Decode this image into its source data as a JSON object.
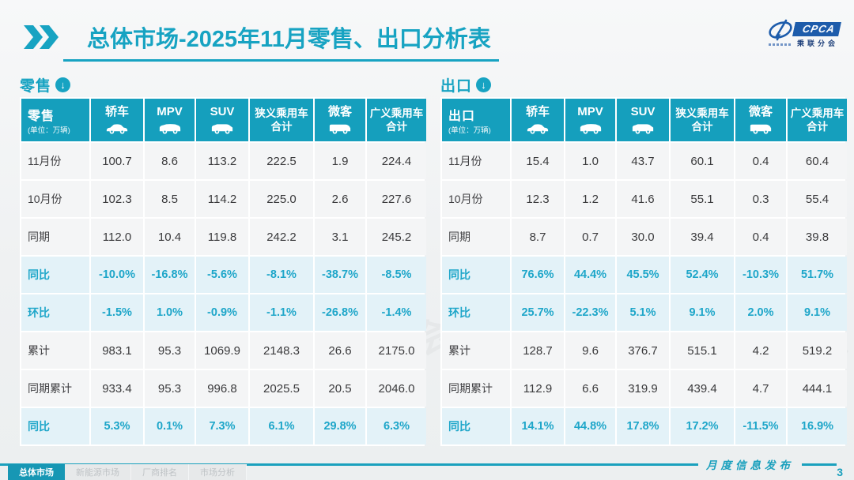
{
  "title": {
    "part1": "总体市场",
    "part2": "-2025年11月零售、出口分析表"
  },
  "logo": {
    "cpca": "CPCA",
    "cn": "乘联分会"
  },
  "colors": {
    "accent_teal": "#17a3c2",
    "header_bg": "#159fbd",
    "percent_row_bg": "#e3f2f8",
    "percent_text": "#1ea6c9",
    "page_bg": "#eff1f2"
  },
  "section_arrow_icon": "circle-down-arrow-icon",
  "tables": [
    {
      "section_label": "零售",
      "corner_label": "零售",
      "corner_unit": "(单位：万辆)",
      "columns": [
        {
          "label": "轿车",
          "icon": "sedan-icon"
        },
        {
          "label": "MPV",
          "icon": "mpv-icon"
        },
        {
          "label": "SUV",
          "icon": "suv-icon"
        },
        {
          "label": "狭义乘用车",
          "label2": "合计",
          "icon": null
        },
        {
          "label": "微客",
          "icon": "microvan-icon"
        },
        {
          "label": "广义乘用车",
          "label2": "合计",
          "icon": null
        }
      ],
      "rows": [
        {
          "label": "11月份",
          "type": "normal",
          "values": [
            "100.7",
            "8.6",
            "113.2",
            "222.5",
            "1.9",
            "224.4"
          ]
        },
        {
          "label": "10月份",
          "type": "normal",
          "values": [
            "102.3",
            "8.5",
            "114.2",
            "225.0",
            "2.6",
            "227.6"
          ]
        },
        {
          "label": "同期",
          "type": "normal",
          "values": [
            "112.0",
            "10.4",
            "119.8",
            "242.2",
            "3.1",
            "245.2"
          ]
        },
        {
          "label": "同比",
          "type": "percent",
          "values": [
            "-10.0%",
            "-16.8%",
            "-5.6%",
            "-8.1%",
            "-38.7%",
            "-8.5%"
          ]
        },
        {
          "label": "环比",
          "type": "percent",
          "values": [
            "-1.5%",
            "1.0%",
            "-0.9%",
            "-1.1%",
            "-26.8%",
            "-1.4%"
          ]
        },
        {
          "label": "累计",
          "type": "normal",
          "values": [
            "983.1",
            "95.3",
            "1069.9",
            "2148.3",
            "26.6",
            "2175.0"
          ]
        },
        {
          "label": "同期累计",
          "type": "normal",
          "values": [
            "933.4",
            "95.3",
            "996.8",
            "2025.5",
            "20.5",
            "2046.0"
          ]
        },
        {
          "label": "同比",
          "type": "percent",
          "values": [
            "5.3%",
            "0.1%",
            "7.3%",
            "6.1%",
            "29.8%",
            "6.3%"
          ]
        }
      ]
    },
    {
      "section_label": "出口",
      "corner_label": "出口",
      "corner_unit": "(单位：万辆)",
      "columns": [
        {
          "label": "轿车",
          "icon": "sedan-icon"
        },
        {
          "label": "MPV",
          "icon": "mpv-icon"
        },
        {
          "label": "SUV",
          "icon": "suv-icon"
        },
        {
          "label": "狭义乘用车",
          "label2": "合计",
          "icon": null
        },
        {
          "label": "微客",
          "icon": "microvan-icon"
        },
        {
          "label": "广义乘用车",
          "label2": "合计",
          "icon": null
        }
      ],
      "rows": [
        {
          "label": "11月份",
          "type": "normal",
          "values": [
            "15.4",
            "1.0",
            "43.7",
            "60.1",
            "0.4",
            "60.4"
          ]
        },
        {
          "label": "10月份",
          "type": "normal",
          "values": [
            "12.3",
            "1.2",
            "41.6",
            "55.1",
            "0.3",
            "55.4"
          ]
        },
        {
          "label": "同期",
          "type": "normal",
          "values": [
            "8.7",
            "0.7",
            "30.0",
            "39.4",
            "0.4",
            "39.8"
          ]
        },
        {
          "label": "同比",
          "type": "percent",
          "values": [
            "76.6%",
            "44.4%",
            "45.5%",
            "52.4%",
            "-10.3%",
            "51.7%"
          ]
        },
        {
          "label": "环比",
          "type": "percent",
          "values": [
            "25.7%",
            "-22.3%",
            "5.1%",
            "9.1%",
            "2.0%",
            "9.1%"
          ]
        },
        {
          "label": "累计",
          "type": "normal",
          "values": [
            "128.7",
            "9.6",
            "376.7",
            "515.1",
            "4.2",
            "519.2"
          ]
        },
        {
          "label": "同期累计",
          "type": "normal",
          "values": [
            "112.9",
            "6.6",
            "319.9",
            "439.4",
            "4.7",
            "444.1"
          ]
        },
        {
          "label": "同比",
          "type": "percent",
          "values": [
            "14.1%",
            "44.8%",
            "17.8%",
            "17.2%",
            "-11.5%",
            "16.9%"
          ]
        }
      ]
    }
  ],
  "watermark_text": "乘联分会",
  "footer": {
    "tabs": [
      {
        "label": "总体市场",
        "active": true
      },
      {
        "label": "新能源市场",
        "active": false
      },
      {
        "label": "厂商排名",
        "active": false
      },
      {
        "label": "市场分析",
        "active": false
      }
    ],
    "banner": "月度信息发布",
    "page": "3"
  }
}
